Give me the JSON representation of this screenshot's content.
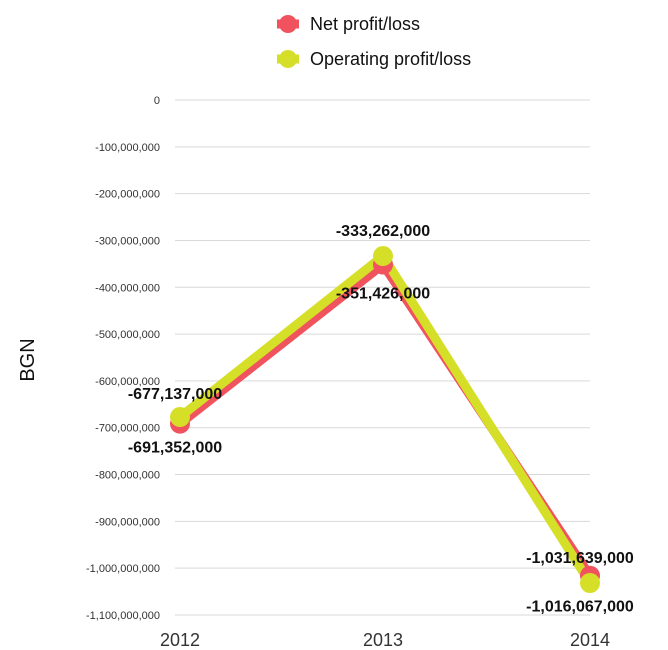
{
  "chart_data": {
    "type": "line",
    "title": "",
    "xlabel": "",
    "ylabel": "BGN",
    "categories": [
      "2012",
      "2013",
      "2014"
    ],
    "ylim": [
      -1100000000,
      0
    ],
    "yticks": [
      0,
      -100000000,
      -200000000,
      -300000000,
      -400000000,
      -500000000,
      -600000000,
      -700000000,
      -800000000,
      -900000000,
      -1000000000,
      -1100000000
    ],
    "ytick_labels": [
      "0",
      "-100,000,000",
      "-200,000,000",
      "-300,000,000",
      "-400,000,000",
      "-500,000,000",
      "-600,000,000",
      "-700,000,000",
      "-800,000,000",
      "-900,000,000",
      "-1,000,000,000",
      "-1,100,000,000"
    ],
    "grid": true,
    "legend_position": "top",
    "series": [
      {
        "name": "Net profit/loss",
        "color": "#f0525e",
        "values": [
          -691352000,
          -351426000,
          -1016067000
        ],
        "labels": [
          "-691,352,000",
          "-351,426,000",
          "-1,016,067,000"
        ]
      },
      {
        "name": "Operating profit/loss",
        "color": "#d6df28",
        "values": [
          -677137000,
          -333262000,
          -1031639000
        ],
        "labels": [
          "-677,137,000",
          "-333,262,000",
          "-1,031,639,000"
        ]
      }
    ]
  }
}
